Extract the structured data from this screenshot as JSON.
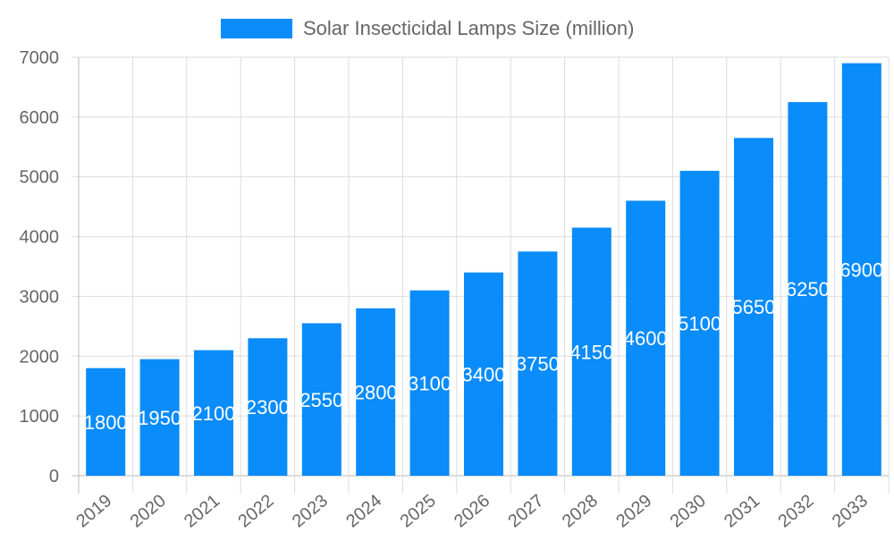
{
  "chart_data": {
    "type": "bar",
    "title": "",
    "xlabel": "",
    "ylabel": "",
    "categories": [
      "2019",
      "2020",
      "2021",
      "2022",
      "2023",
      "2024",
      "2025",
      "2026",
      "2027",
      "2028",
      "2029",
      "2030",
      "2031",
      "2032",
      "2033"
    ],
    "series": [
      {
        "name": "Solar Insecticidal Lamps Size (million)",
        "values": [
          1800,
          1950,
          2100,
          2300,
          2550,
          2800,
          3100,
          3400,
          3750,
          4150,
          4600,
          5100,
          5650,
          6250,
          6900
        ]
      }
    ],
    "ylim": [
      0,
      7000
    ],
    "yticks": [
      0,
      1000,
      2000,
      3000,
      4000,
      5000,
      6000,
      7000
    ],
    "grid": true,
    "legend": "top",
    "data_labels": true,
    "colors": {
      "bar": "#0a8cfa",
      "grid": "#dddddd",
      "text": "#666666",
      "label": "#ffffff"
    }
  }
}
